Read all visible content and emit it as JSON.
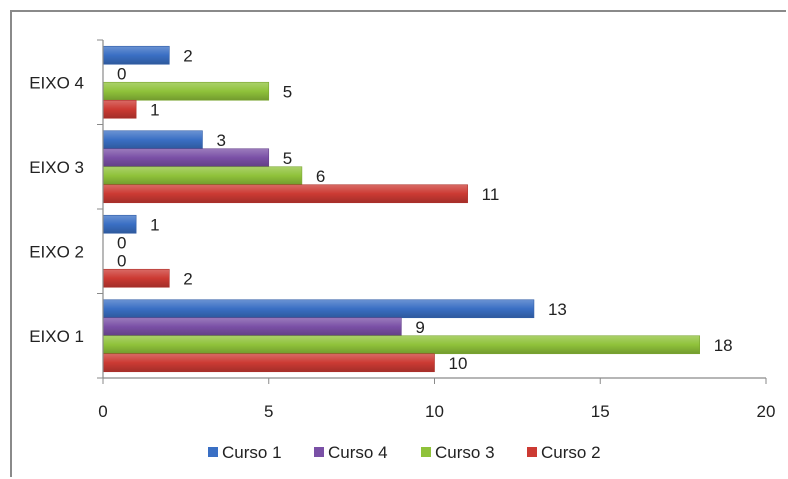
{
  "chart_data": {
    "type": "bar",
    "orientation": "horizontal",
    "categories": [
      "EIXO 1",
      "EIXO 2",
      "EIXO 3",
      "EIXO 4"
    ],
    "series": [
      {
        "name": "Curso 1",
        "values": [
          13,
          1,
          3,
          2
        ],
        "color": "#3a6fc4"
      },
      {
        "name": "Curso 4",
        "values": [
          9,
          0,
          5,
          0
        ],
        "color": "#7a50a6"
      },
      {
        "name": "Curso 3",
        "values": [
          18,
          0,
          6,
          5
        ],
        "color": "#8fc23a"
      },
      {
        "name": "Curso 2",
        "values": [
          10,
          2,
          11,
          1
        ],
        "color": "#cc3a33"
      }
    ],
    "x_ticks": [
      0,
      5,
      10,
      15,
      20
    ],
    "xlim": [
      0,
      20
    ],
    "grid": false,
    "legend_position": "bottom",
    "data_labels": true
  }
}
